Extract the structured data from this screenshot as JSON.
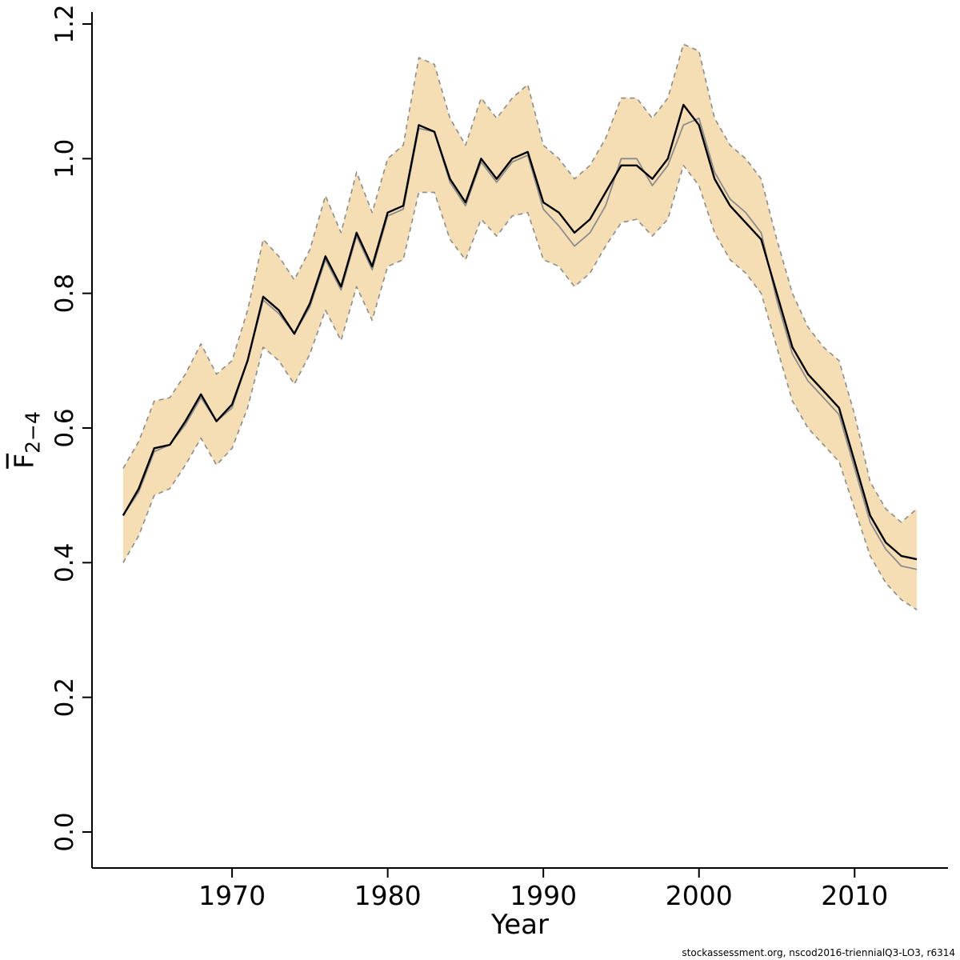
{
  "chart_data": {
    "type": "line",
    "xlabel": "Year",
    "ylabel_main": "F",
    "ylabel_sub": "2−4",
    "xlim": [
      1961,
      2016
    ],
    "ylim": [
      0,
      1.2
    ],
    "x_ticks": [
      1970,
      1980,
      1990,
      2000,
      2010
    ],
    "y_ticks": [
      0.0,
      0.2,
      0.4,
      0.6,
      0.8,
      1.0,
      1.2
    ],
    "grid": false,
    "legend": "none",
    "x": [
      1963,
      1964,
      1965,
      1966,
      1967,
      1968,
      1969,
      1970,
      1971,
      1972,
      1973,
      1974,
      1975,
      1976,
      1977,
      1978,
      1979,
      1980,
      1981,
      1982,
      1983,
      1984,
      1985,
      1986,
      1987,
      1988,
      1989,
      1990,
      1991,
      1992,
      1993,
      1994,
      1995,
      1996,
      1997,
      1998,
      1999,
      2000,
      2001,
      2002,
      2003,
      2004,
      2005,
      2006,
      2007,
      2008,
      2009,
      2010,
      2011,
      2012,
      2013,
      2014
    ],
    "series": [
      {
        "name": "black-estimate",
        "color": "#000000",
        "values": [
          0.47,
          0.51,
          0.57,
          0.575,
          0.61,
          0.65,
          0.61,
          0.635,
          0.7,
          0.795,
          0.775,
          0.74,
          0.785,
          0.855,
          0.81,
          0.89,
          0.84,
          0.92,
          0.93,
          1.05,
          1.04,
          0.97,
          0.935,
          1.0,
          0.97,
          1.0,
          1.01,
          0.935,
          0.92,
          0.89,
          0.91,
          0.95,
          0.99,
          0.99,
          0.97,
          1.0,
          1.08,
          1.05,
          0.97,
          0.93,
          0.905,
          0.88,
          0.8,
          0.72,
          0.68,
          0.655,
          0.63,
          0.55,
          0.47,
          0.43,
          0.41,
          0.405
        ]
      },
      {
        "name": "gray-estimate",
        "color": "#8c8c8c",
        "values": [
          0.47,
          0.505,
          0.565,
          0.575,
          0.605,
          0.645,
          0.61,
          0.63,
          0.7,
          0.79,
          0.77,
          0.74,
          0.78,
          0.85,
          0.805,
          0.885,
          0.835,
          0.915,
          0.925,
          1.045,
          1.04,
          0.965,
          0.93,
          0.995,
          0.965,
          0.995,
          1.005,
          0.925,
          0.9,
          0.87,
          0.89,
          0.93,
          1.0,
          1.0,
          0.96,
          0.99,
          1.05,
          1.06,
          0.98,
          0.94,
          0.92,
          0.89,
          0.79,
          0.71,
          0.67,
          0.645,
          0.62,
          0.54,
          0.46,
          0.42,
          0.395,
          0.39
        ]
      }
    ],
    "band": {
      "name": "confidence-interval",
      "fill": "#f5deb3",
      "edge_color": "#8c8c8c",
      "edge_style": "dashed",
      "upper": [
        0.54,
        0.58,
        0.64,
        0.645,
        0.68,
        0.725,
        0.68,
        0.7,
        0.775,
        0.88,
        0.855,
        0.82,
        0.865,
        0.945,
        0.89,
        0.98,
        0.92,
        1.0,
        1.02,
        1.15,
        1.14,
        1.06,
        1.02,
        1.09,
        1.06,
        1.09,
        1.11,
        1.02,
        1.0,
        0.97,
        0.99,
        1.03,
        1.09,
        1.09,
        1.06,
        1.09,
        1.17,
        1.16,
        1.06,
        1.02,
        1.0,
        0.97,
        0.88,
        0.8,
        0.75,
        0.72,
        0.7,
        0.62,
        0.52,
        0.48,
        0.46,
        0.48
      ],
      "lower": [
        0.4,
        0.44,
        0.5,
        0.51,
        0.545,
        0.585,
        0.545,
        0.57,
        0.63,
        0.72,
        0.7,
        0.665,
        0.71,
        0.775,
        0.73,
        0.81,
        0.76,
        0.84,
        0.85,
        0.95,
        0.95,
        0.88,
        0.85,
        0.91,
        0.885,
        0.915,
        0.92,
        0.85,
        0.84,
        0.81,
        0.83,
        0.87,
        0.905,
        0.91,
        0.885,
        0.91,
        0.99,
        0.96,
        0.89,
        0.85,
        0.83,
        0.8,
        0.72,
        0.64,
        0.6,
        0.575,
        0.55,
        0.48,
        0.41,
        0.37,
        0.345,
        0.33
      ]
    },
    "source_note": "stockassessment.org, nscod2016-triennialQ3-LO3, r6314"
  }
}
